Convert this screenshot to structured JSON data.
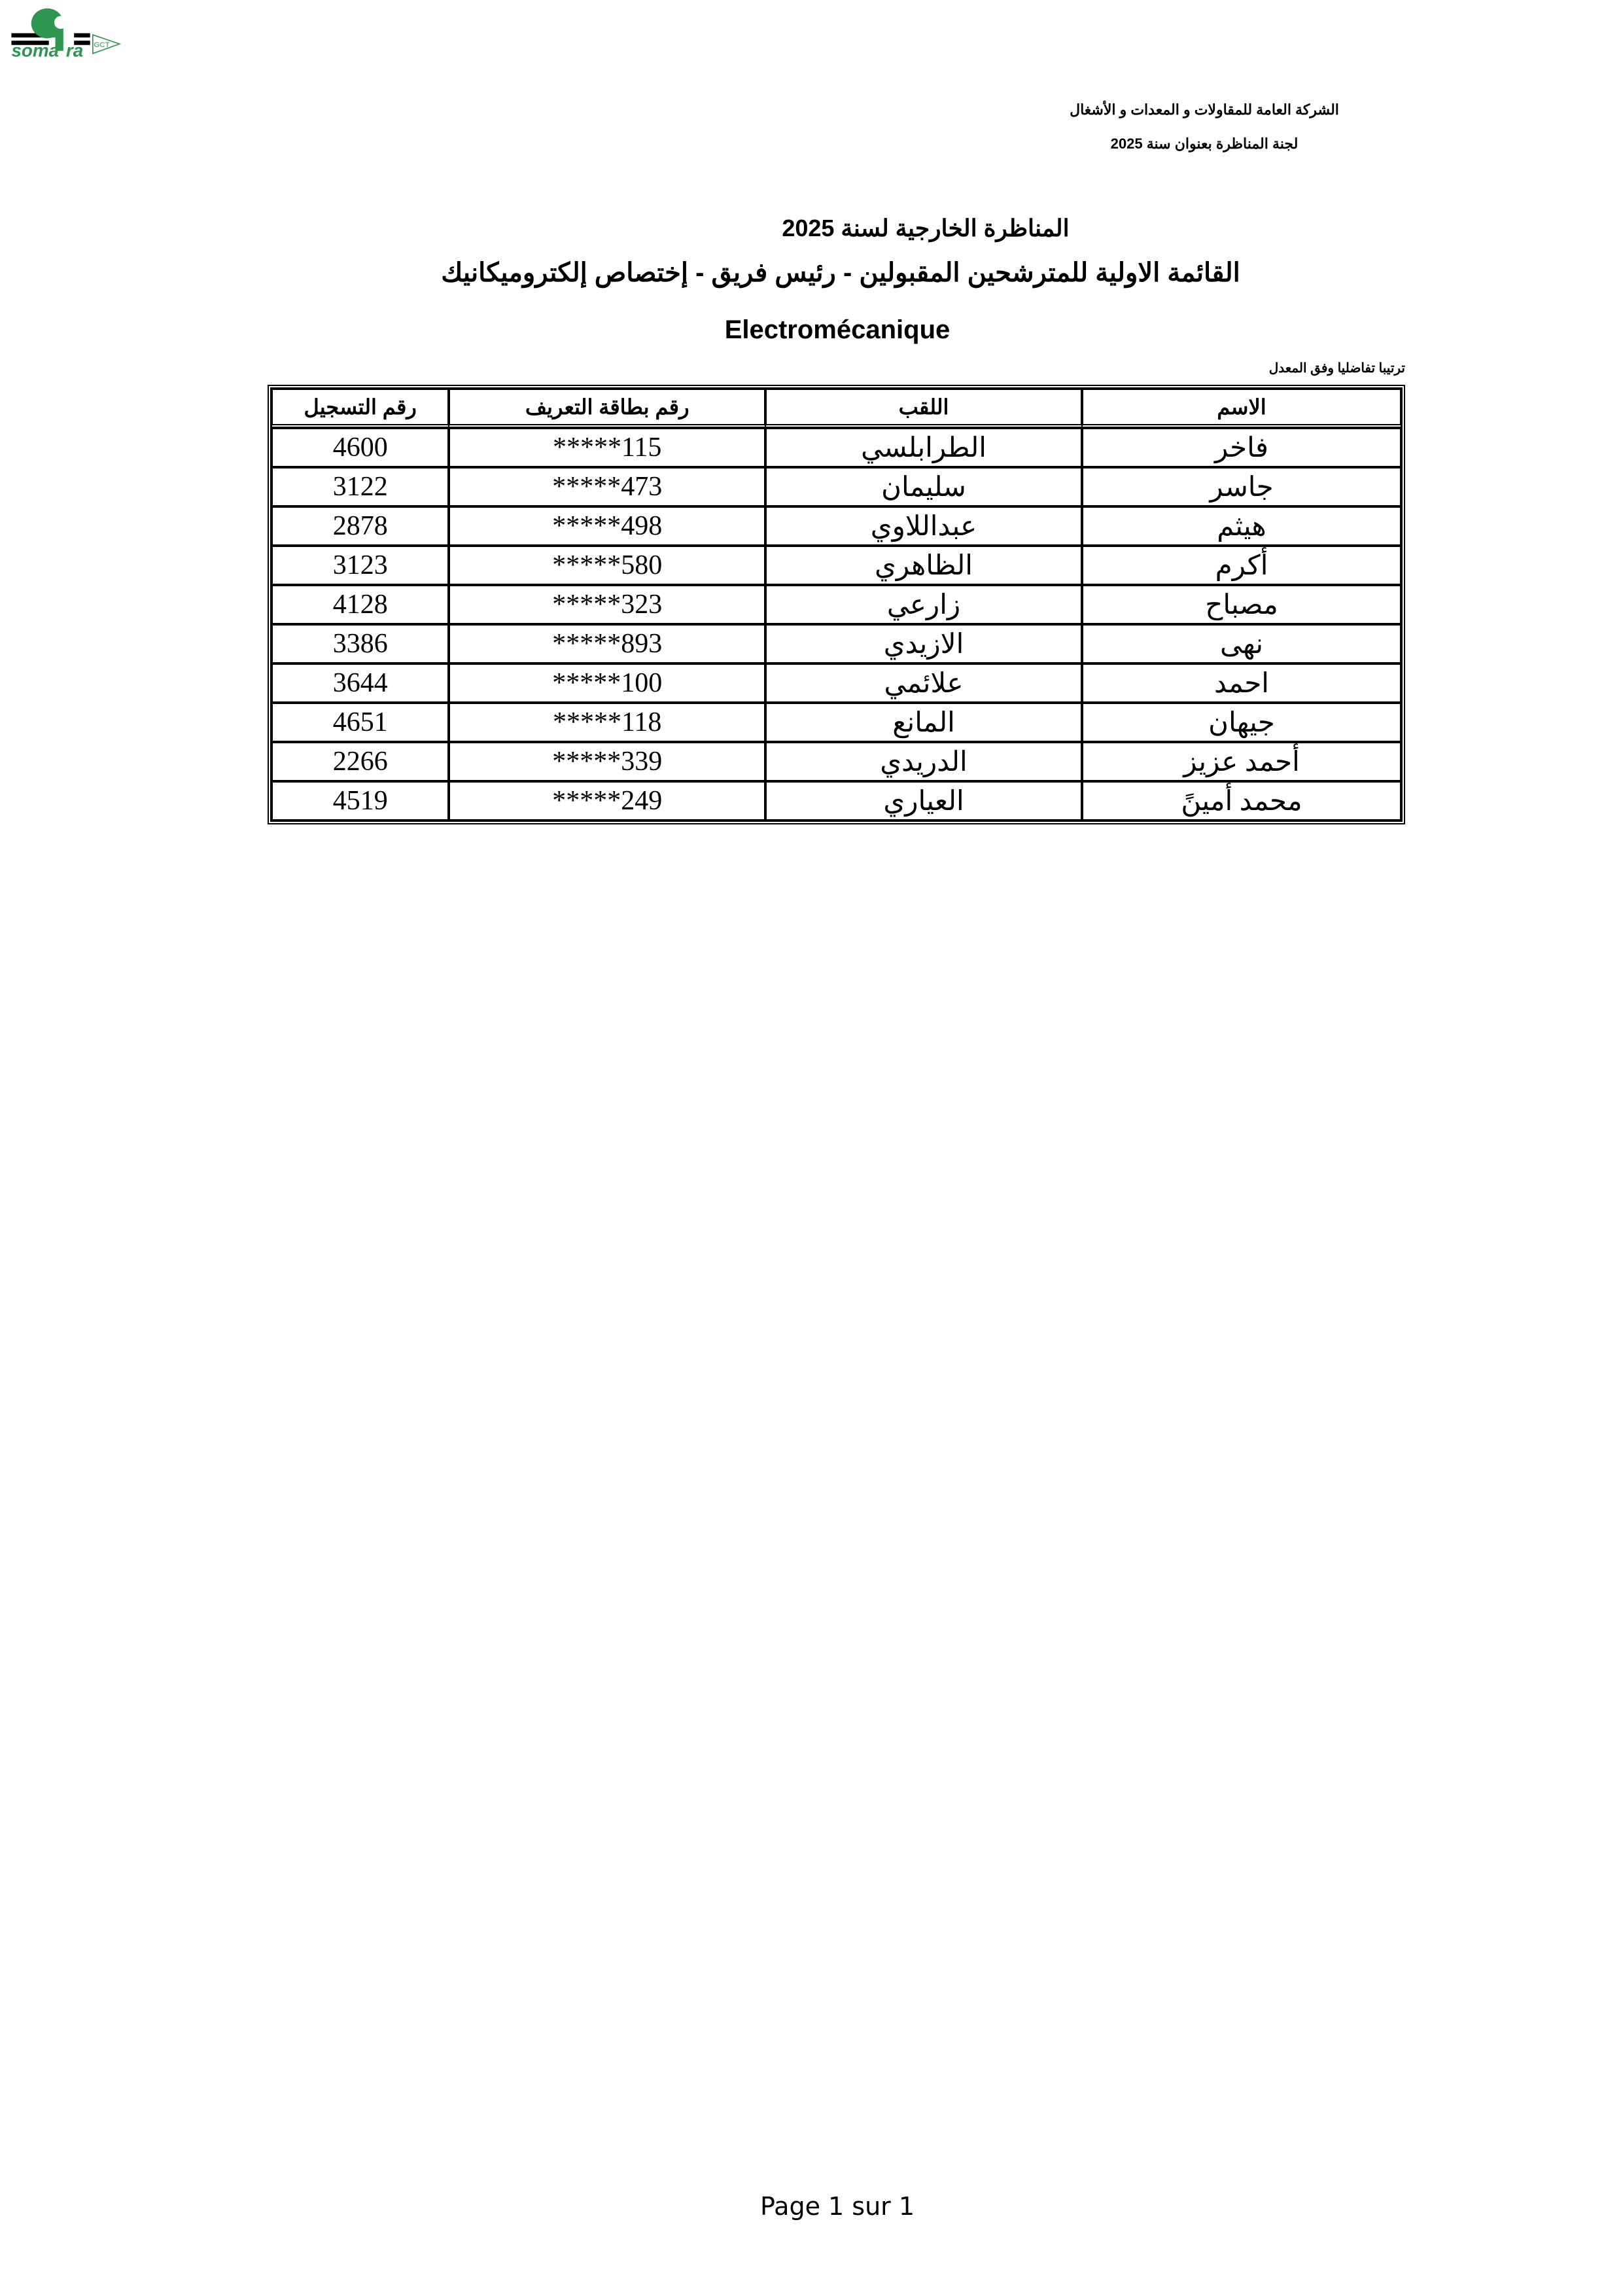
{
  "header": {
    "company": "الشركة العامة للمقاولات و المعدات و الأشغال",
    "committee": "لجنة المناظرة بعنوان سنة 2025",
    "logo_text": "somatra GCT",
    "logo_color": "#2e9650"
  },
  "title": {
    "line1": "المناظرة الخارجية لسنة 2025",
    "line2": "القائمة الاولية للمترشحين المقبولين - رئيس فريق -  إختصاص  إلكتروميكانيك",
    "line3": "Electromécanique",
    "note": "ترتيبا تفاضليا وفق المعدل"
  },
  "table": {
    "headers": [
      "الاسم",
      "اللقب",
      "رقم بطاقة التعريف",
      "رقم التسجيل"
    ],
    "rows": [
      [
        "فاخر",
        "الطرابلسي",
        "*****115",
        "4600"
      ],
      [
        "جاسر",
        "سليمان",
        "*****473",
        "3122"
      ],
      [
        "هيثم",
        "عبداللاوي",
        "*****498",
        "2878"
      ],
      [
        "أكرم",
        "الظاهري",
        "*****580",
        "3123"
      ],
      [
        "مصباح",
        "زارعي",
        "*****323",
        "4128"
      ],
      [
        "نهى",
        "الازيدي",
        "*****893",
        "3386"
      ],
      [
        "احمد",
        "علائمي",
        "*****100",
        "3644"
      ],
      [
        "جيهان",
        "المانع",
        "*****118",
        "4651"
      ],
      [
        "أحمد عزيز",
        "الدريدي",
        "*****339",
        "2266"
      ],
      [
        "محمد أمينً",
        "العياري",
        "*****249",
        "4519"
      ]
    ]
  },
  "footer": {
    "page": "Page 1 sur 1"
  }
}
